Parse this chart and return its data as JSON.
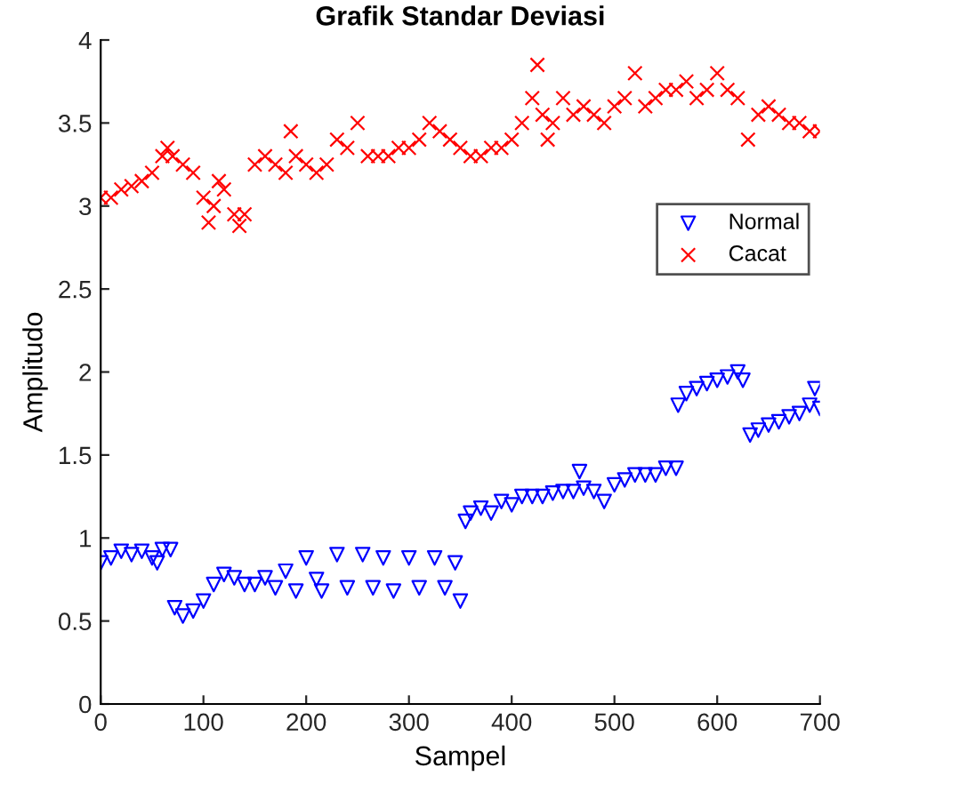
{
  "chart_data": {
    "type": "scatter",
    "title": "Grafik Standar Deviasi",
    "xlabel": "Sampel",
    "ylabel": "Amplitudo",
    "xlim": [
      0,
      700
    ],
    "xticks": [
      0,
      100,
      200,
      300,
      400,
      500,
      600,
      700
    ],
    "ylim": [
      0,
      4
    ],
    "yticks": [
      0,
      0.5,
      1,
      1.5,
      2,
      2.5,
      3,
      3.5,
      4
    ],
    "grid": false,
    "legend": "right",
    "series": [
      {
        "name": "Normal",
        "color": "#0000ff",
        "marker": "triangle",
        "x": [
          0,
          10,
          20,
          30,
          40,
          50,
          55,
          60,
          68,
          72,
          80,
          90,
          100,
          110,
          120,
          130,
          140,
          150,
          160,
          170,
          180,
          190,
          200,
          210,
          215,
          230,
          240,
          255,
          265,
          275,
          285,
          300,
          310,
          325,
          335,
          345,
          350,
          355,
          360,
          370,
          380,
          390,
          400,
          410,
          420,
          430,
          440,
          450,
          460,
          466,
          470,
          480,
          490,
          500,
          510,
          520,
          530,
          540,
          550,
          560,
          562,
          570,
          580,
          590,
          600,
          610,
          620,
          625,
          632,
          640,
          650,
          660,
          670,
          680,
          690,
          695,
          700
        ],
        "values": [
          0.85,
          0.88,
          0.92,
          0.9,
          0.92,
          0.88,
          0.85,
          0.93,
          0.93,
          0.58,
          0.53,
          0.56,
          0.62,
          0.72,
          0.78,
          0.76,
          0.72,
          0.72,
          0.76,
          0.7,
          0.8,
          0.68,
          0.88,
          0.75,
          0.68,
          0.9,
          0.7,
          0.9,
          0.7,
          0.88,
          0.68,
          0.88,
          0.7,
          0.88,
          0.7,
          0.85,
          0.62,
          1.1,
          1.15,
          1.18,
          1.15,
          1.22,
          1.2,
          1.25,
          1.25,
          1.25,
          1.27,
          1.28,
          1.28,
          1.4,
          1.3,
          1.28,
          1.22,
          1.32,
          1.35,
          1.38,
          1.38,
          1.38,
          1.42,
          1.42,
          1.8,
          1.87,
          1.9,
          1.93,
          1.95,
          1.97,
          2.0,
          1.95,
          1.62,
          1.65,
          1.68,
          1.7,
          1.73,
          1.75,
          1.8,
          1.9,
          1.78
        ]
      },
      {
        "name": "Cacat",
        "color": "#ff0000",
        "marker": "cross",
        "x": [
          0,
          10,
          20,
          30,
          40,
          50,
          60,
          65,
          70,
          80,
          90,
          100,
          105,
          110,
          115,
          120,
          130,
          135,
          140,
          150,
          160,
          170,
          180,
          185,
          190,
          200,
          210,
          220,
          230,
          240,
          250,
          260,
          270,
          280,
          290,
          300,
          310,
          320,
          330,
          340,
          350,
          360,
          370,
          380,
          390,
          400,
          410,
          420,
          425,
          430,
          435,
          440,
          450,
          460,
          470,
          480,
          490,
          500,
          510,
          520,
          530,
          540,
          550,
          560,
          570,
          580,
          590,
          600,
          610,
          620,
          630,
          640,
          650,
          660,
          670,
          680,
          690,
          700
        ],
        "values": [
          3.05,
          3.05,
          3.1,
          3.12,
          3.15,
          3.2,
          3.3,
          3.35,
          3.3,
          3.25,
          3.2,
          3.05,
          2.9,
          3.0,
          3.15,
          3.1,
          2.95,
          2.88,
          2.95,
          3.25,
          3.3,
          3.25,
          3.2,
          3.45,
          3.3,
          3.25,
          3.2,
          3.25,
          3.4,
          3.35,
          3.5,
          3.3,
          3.3,
          3.3,
          3.35,
          3.35,
          3.4,
          3.5,
          3.45,
          3.4,
          3.35,
          3.3,
          3.3,
          3.35,
          3.35,
          3.4,
          3.5,
          3.65,
          3.85,
          3.55,
          3.4,
          3.5,
          3.65,
          3.55,
          3.6,
          3.55,
          3.5,
          3.6,
          3.65,
          3.8,
          3.6,
          3.65,
          3.7,
          3.7,
          3.75,
          3.65,
          3.7,
          3.8,
          3.7,
          3.65,
          3.4,
          3.55,
          3.6,
          3.55,
          3.5,
          3.5,
          3.45,
          3.45
        ]
      }
    ]
  }
}
